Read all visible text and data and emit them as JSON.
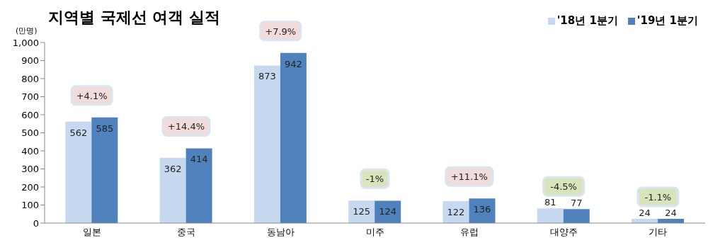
{
  "chart_data": {
    "type": "bar",
    "title": "지역별 국제선 여객 실적",
    "ylabel": "(만명)",
    "categories": [
      "일본",
      "중국",
      "동남아",
      "미주",
      "유럽",
      "대양주",
      "기타"
    ],
    "series": [
      {
        "name": "'18년 1분기",
        "color": "#c6d9f1",
        "values": [
          562,
          362,
          873,
          125,
          122,
          81,
          24
        ]
      },
      {
        "name": "'19년 1분기",
        "color": "#4f81bd",
        "values": [
          585,
          414,
          942,
          124,
          136,
          77,
          24
        ]
      }
    ],
    "ylim": [
      0,
      1000
    ],
    "yticks": [
      0,
      100,
      200,
      300,
      400,
      500,
      600,
      700,
      800,
      900,
      {
        "value": 1000,
        "label": "1,000"
      }
    ],
    "grid": false,
    "legend": "top right",
    "data_labels": true,
    "annotations": [
      {
        "text": "+4.1%",
        "x": "일본",
        "y": 585
      },
      {
        "text": "+14.4%",
        "x": "중국",
        "y": 414
      },
      {
        "text": "+7.9%",
        "x": "동남아",
        "y": 942
      },
      {
        "text": "-1%",
        "x": "미주",
        "y": 125
      },
      {
        "text": "+11.1%",
        "x": "유럽",
        "y": 136
      },
      {
        "text": "-4.5%",
        "x": "대양주",
        "y": 81
      },
      {
        "text": "-1.1%",
        "x": "기타",
        "y": 24
      }
    ]
  }
}
